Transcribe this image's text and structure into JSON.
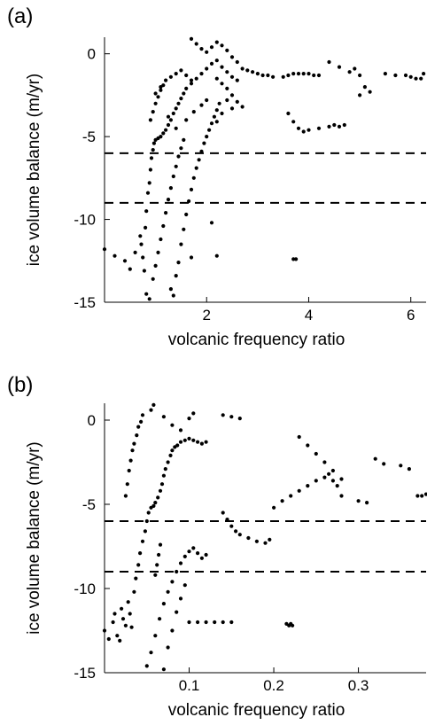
{
  "chart_data": [
    {
      "type": "scatter",
      "panel_label": "(a)",
      "xlabel": "volcanic frequency ratio",
      "ylabel": "ice volume balance (m/yr)",
      "xlim": [
        0,
        6.3
      ],
      "ylim": [
        -15,
        1
      ],
      "xticks": [
        2,
        4,
        6
      ],
      "yticks": [
        0,
        -5,
        -10,
        -15
      ],
      "hlines": [
        -6,
        -9
      ],
      "marker_color": "#000000",
      "points": [
        [
          0.0,
          -11.8
        ],
        [
          0.2,
          -12.2
        ],
        [
          0.4,
          -12.5
        ],
        [
          0.5,
          -13.0
        ],
        [
          0.6,
          -12.0
        ],
        [
          0.7,
          -11.0
        ],
        [
          0.72,
          -11.5
        ],
        [
          0.75,
          -12.3
        ],
        [
          0.78,
          -13.1
        ],
        [
          0.8,
          -10.5
        ],
        [
          0.82,
          -9.5
        ],
        [
          0.85,
          -8.4
        ],
        [
          0.88,
          -7.8
        ],
        [
          0.9,
          -7.0
        ],
        [
          0.92,
          -6.3
        ],
        [
          0.95,
          -5.8
        ],
        [
          0.97,
          -5.4
        ],
        [
          1.0,
          -5.2
        ],
        [
          1.05,
          -5.1
        ],
        [
          1.1,
          -5.0
        ],
        [
          1.15,
          -4.8
        ],
        [
          1.2,
          -4.6
        ],
        [
          1.25,
          -4.3
        ],
        [
          1.3,
          -4.0
        ],
        [
          1.35,
          -3.6
        ],
        [
          1.4,
          -3.3
        ],
        [
          1.45,
          -3.0
        ],
        [
          1.5,
          -2.7
        ],
        [
          1.55,
          -2.4
        ],
        [
          1.6,
          -2.1
        ],
        [
          1.7,
          -1.8
        ],
        [
          1.8,
          -1.5
        ],
        [
          1.9,
          -1.2
        ],
        [
          2.0,
          -0.9
        ],
        [
          2.1,
          -0.6
        ],
        [
          2.2,
          -0.4
        ],
        [
          2.3,
          -0.8
        ],
        [
          2.4,
          -1.1
        ],
        [
          2.5,
          -1.4
        ],
        [
          2.6,
          -1.6
        ],
        [
          0.82,
          -14.5
        ],
        [
          0.88,
          -14.8
        ],
        [
          0.95,
          -13.6
        ],
        [
          1.0,
          -12.8
        ],
        [
          1.05,
          -12.0
        ],
        [
          1.1,
          -11.2
        ],
        [
          1.15,
          -10.4
        ],
        [
          1.2,
          -9.6
        ],
        [
          1.25,
          -8.8
        ],
        [
          1.3,
          -8.1
        ],
        [
          1.35,
          -7.4
        ],
        [
          1.4,
          -6.8
        ],
        [
          1.45,
          -6.2
        ],
        [
          1.5,
          -5.7
        ],
        [
          1.55,
          -5.2
        ],
        [
          1.3,
          -14.2
        ],
        [
          1.35,
          -14.6
        ],
        [
          1.4,
          -13.4
        ],
        [
          1.45,
          -12.6
        ],
        [
          1.5,
          -11.5
        ],
        [
          1.55,
          -10.6
        ],
        [
          1.6,
          -9.7
        ],
        [
          1.65,
          -8.9
        ],
        [
          1.7,
          -8.2
        ],
        [
          1.75,
          -7.5
        ],
        [
          1.8,
          -6.9
        ],
        [
          1.85,
          -6.4
        ],
        [
          1.9,
          -5.9
        ],
        [
          1.95,
          -5.4
        ],
        [
          2.0,
          -5.0
        ],
        [
          2.05,
          -4.6
        ],
        [
          2.1,
          -4.2
        ],
        [
          2.15,
          -3.8
        ],
        [
          2.2,
          -3.4
        ],
        [
          2.25,
          -3.0
        ],
        [
          1.0,
          -3.0
        ],
        [
          1.05,
          -2.6
        ],
        [
          1.1,
          -2.2
        ],
        [
          1.15,
          -1.9
        ],
        [
          1.2,
          -1.6
        ],
        [
          1.3,
          -1.4
        ],
        [
          1.4,
          -1.2
        ],
        [
          1.5,
          -1.0
        ],
        [
          1.6,
          -1.3
        ],
        [
          1.7,
          -1.6
        ],
        [
          0.9,
          -4.0
        ],
        [
          0.95,
          -3.5
        ],
        [
          1.0,
          -2.4
        ],
        [
          1.1,
          -2.0
        ],
        [
          1.25,
          -3.8
        ],
        [
          1.4,
          -4.5
        ],
        [
          1.6,
          -4.0
        ],
        [
          1.75,
          -3.5
        ],
        [
          1.9,
          -3.1
        ],
        [
          2.0,
          -2.8
        ],
        [
          1.7,
          0.9
        ],
        [
          1.8,
          0.6
        ],
        [
          1.9,
          0.3
        ],
        [
          2.0,
          0.1
        ],
        [
          2.1,
          0.4
        ],
        [
          2.2,
          0.7
        ],
        [
          2.3,
          0.5
        ],
        [
          2.4,
          0.2
        ],
        [
          2.5,
          -0.2
        ],
        [
          2.6,
          -0.5
        ],
        [
          2.7,
          -0.9
        ],
        [
          2.8,
          -1.0
        ],
        [
          2.9,
          -1.1
        ],
        [
          3.0,
          -1.2
        ],
        [
          3.1,
          -1.3
        ],
        [
          3.2,
          -1.3
        ],
        [
          3.3,
          -1.4
        ],
        [
          3.5,
          -1.4
        ],
        [
          3.6,
          -1.3
        ],
        [
          3.7,
          -1.2
        ],
        [
          3.8,
          -1.2
        ],
        [
          3.9,
          -1.2
        ],
        [
          4.0,
          -1.2
        ],
        [
          4.1,
          -1.3
        ],
        [
          4.2,
          -1.3
        ],
        [
          2.2,
          -1.5
        ],
        [
          2.3,
          -1.8
        ],
        [
          2.4,
          -2.1
        ],
        [
          2.5,
          -2.5
        ],
        [
          2.6,
          -2.9
        ],
        [
          2.7,
          -3.2
        ],
        [
          2.4,
          -2.8
        ],
        [
          2.5,
          -3.3
        ],
        [
          2.3,
          -3.6
        ],
        [
          2.2,
          -4.1
        ],
        [
          3.7,
          -12.4
        ],
        [
          3.75,
          -12.4
        ],
        [
          2.2,
          -12.2
        ],
        [
          1.7,
          -12.3
        ],
        [
          2.1,
          -10.2
        ],
        [
          3.6,
          -3.6
        ],
        [
          3.7,
          -4.1
        ],
        [
          3.8,
          -4.5
        ],
        [
          3.9,
          -4.7
        ],
        [
          4.0,
          -4.6
        ],
        [
          4.2,
          -4.5
        ],
        [
          4.4,
          -4.4
        ],
        [
          4.5,
          -4.3
        ],
        [
          4.6,
          -4.4
        ],
        [
          4.7,
          -4.3
        ],
        [
          4.4,
          -0.5
        ],
        [
          4.6,
          -0.8
        ],
        [
          4.8,
          -1.1
        ],
        [
          5.0,
          -1.3
        ],
        [
          5.1,
          -2.0
        ],
        [
          5.2,
          -2.3
        ],
        [
          5.0,
          -2.5
        ],
        [
          4.9,
          -0.9
        ],
        [
          5.5,
          -1.2
        ],
        [
          5.7,
          -1.3
        ],
        [
          5.9,
          -1.3
        ],
        [
          6.0,
          -1.4
        ],
        [
          6.1,
          -1.5
        ],
        [
          6.2,
          -1.5
        ],
        [
          6.25,
          -1.2
        ]
      ]
    },
    {
      "type": "scatter",
      "panel_label": "(b)",
      "xlabel": "volcanic frequency ratio",
      "ylabel": "ice volume balance (m/yr)",
      "xlim": [
        0,
        0.38
      ],
      "ylim": [
        -15,
        1
      ],
      "xticks": [
        0.1,
        0.2,
        0.3
      ],
      "yticks": [
        0,
        -5,
        -10,
        -15
      ],
      "hlines": [
        -6,
        -9
      ],
      "marker_color": "#000000",
      "points": [
        [
          0.0,
          -12.5
        ],
        [
          0.005,
          -13.0
        ],
        [
          0.01,
          -12.0
        ],
        [
          0.012,
          -11.5
        ],
        [
          0.015,
          -12.8
        ],
        [
          0.018,
          -13.1
        ],
        [
          0.02,
          -11.2
        ],
        [
          0.022,
          -11.8
        ],
        [
          0.025,
          -12.2
        ],
        [
          0.028,
          -10.8
        ],
        [
          0.03,
          -11.5
        ],
        [
          0.032,
          -12.3
        ],
        [
          0.035,
          -10.2
        ],
        [
          0.037,
          -9.4
        ],
        [
          0.04,
          -8.6
        ],
        [
          0.042,
          -7.9
        ],
        [
          0.045,
          -7.2
        ],
        [
          0.048,
          -6.6
        ],
        [
          0.05,
          -6.0
        ],
        [
          0.052,
          -5.5
        ],
        [
          0.055,
          -5.2
        ],
        [
          0.058,
          -5.1
        ],
        [
          0.06,
          -4.9
        ],
        [
          0.063,
          -4.6
        ],
        [
          0.066,
          -4.2
        ],
        [
          0.068,
          -3.8
        ],
        [
          0.07,
          -3.3
        ],
        [
          0.072,
          -2.9
        ],
        [
          0.075,
          -2.5
        ],
        [
          0.078,
          -2.1
        ],
        [
          0.08,
          -1.8
        ],
        [
          0.083,
          -1.6
        ],
        [
          0.086,
          -1.5
        ],
        [
          0.09,
          -1.3
        ],
        [
          0.095,
          -1.2
        ],
        [
          0.1,
          -1.1
        ],
        [
          0.105,
          -1.2
        ],
        [
          0.11,
          -1.3
        ],
        [
          0.115,
          -1.4
        ],
        [
          0.12,
          -1.3
        ],
        [
          0.025,
          -4.5
        ],
        [
          0.027,
          -3.8
        ],
        [
          0.029,
          -3.0
        ],
        [
          0.031,
          -2.4
        ],
        [
          0.033,
          -1.8
        ],
        [
          0.035,
          -1.4
        ],
        [
          0.038,
          -0.9
        ],
        [
          0.04,
          -0.4
        ],
        [
          0.043,
          -0.1
        ],
        [
          0.045,
          0.3
        ],
        [
          0.055,
          0.6
        ],
        [
          0.058,
          0.9
        ],
        [
          0.07,
          0.2
        ],
        [
          0.08,
          -0.3
        ],
        [
          0.09,
          -0.6
        ],
        [
          0.1,
          0.1
        ],
        [
          0.105,
          0.4
        ],
        [
          0.14,
          0.3
        ],
        [
          0.15,
          0.2
        ],
        [
          0.16,
          0.1
        ],
        [
          0.05,
          -14.6
        ],
        [
          0.055,
          -13.8
        ],
        [
          0.06,
          -12.8
        ],
        [
          0.065,
          -11.8
        ],
        [
          0.07,
          -10.9
        ],
        [
          0.075,
          -10.2
        ],
        [
          0.08,
          -9.6
        ],
        [
          0.085,
          -9.0
        ],
        [
          0.09,
          -8.5
        ],
        [
          0.095,
          -8.1
        ],
        [
          0.1,
          -7.8
        ],
        [
          0.105,
          -7.6
        ],
        [
          0.11,
          -7.9
        ],
        [
          0.115,
          -8.2
        ],
        [
          0.12,
          -8.0
        ],
        [
          0.07,
          -14.8
        ],
        [
          0.075,
          -13.5
        ],
        [
          0.08,
          -12.5
        ],
        [
          0.085,
          -11.4
        ],
        [
          0.09,
          -10.6
        ],
        [
          0.095,
          -9.8
        ],
        [
          0.06,
          -9.2
        ],
        [
          0.062,
          -8.6
        ],
        [
          0.064,
          -8.0
        ],
        [
          0.066,
          -7.4
        ],
        [
          0.1,
          -12.0
        ],
        [
          0.11,
          -12.0
        ],
        [
          0.12,
          -12.0
        ],
        [
          0.13,
          -12.0
        ],
        [
          0.14,
          -12.0
        ],
        [
          0.15,
          -12.0
        ],
        [
          0.215,
          -12.1
        ],
        [
          0.218,
          -12.2
        ],
        [
          0.22,
          -12.1
        ],
        [
          0.222,
          -12.2
        ],
        [
          0.14,
          -5.5
        ],
        [
          0.145,
          -5.9
        ],
        [
          0.15,
          -6.3
        ],
        [
          0.155,
          -6.6
        ],
        [
          0.16,
          -6.8
        ],
        [
          0.17,
          -7.0
        ],
        [
          0.18,
          -7.2
        ],
        [
          0.19,
          -7.3
        ],
        [
          0.195,
          -7.1
        ],
        [
          0.2,
          -5.2
        ],
        [
          0.21,
          -4.8
        ],
        [
          0.22,
          -4.5
        ],
        [
          0.23,
          -4.2
        ],
        [
          0.24,
          -3.9
        ],
        [
          0.25,
          -3.6
        ],
        [
          0.26,
          -3.4
        ],
        [
          0.265,
          -3.2
        ],
        [
          0.27,
          -3.6
        ],
        [
          0.275,
          -3.9
        ],
        [
          0.28,
          -3.5
        ],
        [
          0.23,
          -1.0
        ],
        [
          0.24,
          -1.5
        ],
        [
          0.25,
          -2.0
        ],
        [
          0.26,
          -2.5
        ],
        [
          0.27,
          -3.0
        ],
        [
          0.28,
          -4.5
        ],
        [
          0.3,
          -4.8
        ],
        [
          0.31,
          -4.9
        ],
        [
          0.32,
          -2.3
        ],
        [
          0.33,
          -2.6
        ],
        [
          0.35,
          -2.7
        ],
        [
          0.36,
          -2.9
        ],
        [
          0.37,
          -4.5
        ],
        [
          0.375,
          -4.5
        ],
        [
          0.38,
          -4.4
        ]
      ]
    }
  ]
}
